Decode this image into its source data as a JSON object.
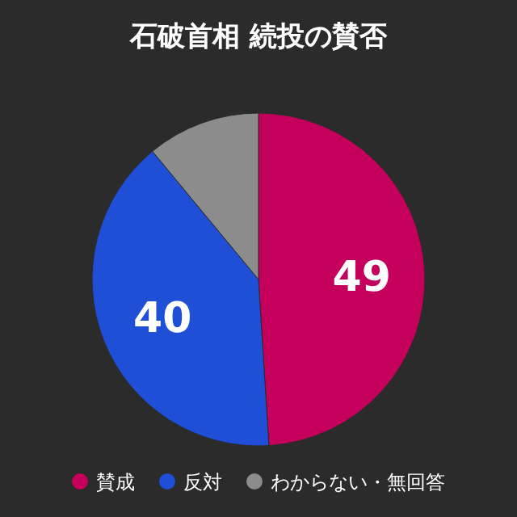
{
  "chart_data": {
    "type": "pie",
    "title": "石破首相 続投の賛否",
    "categories": [
      "賛成",
      "反対",
      "わからない・無回答"
    ],
    "values": [
      49,
      40,
      11
    ],
    "colors": [
      "#c4005c",
      "#1f4fd6",
      "#8c8c8c"
    ],
    "value_labels": [
      "49",
      "40",
      null
    ],
    "legend": "bottom"
  }
}
